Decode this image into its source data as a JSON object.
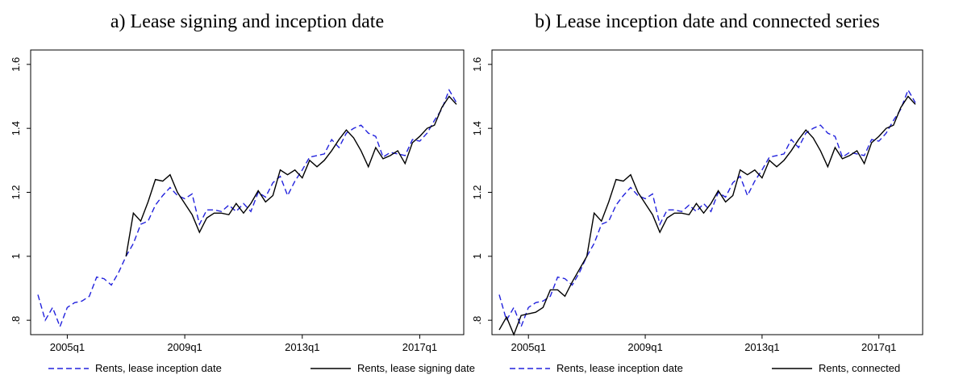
{
  "chart_data": [
    {
      "type": "line",
      "title": "a) Lease signing and inception date",
      "categories": [
        null,
        null,
        null,
        null,
        "2005q1",
        null,
        null,
        null,
        null,
        null,
        null,
        null,
        null,
        null,
        null,
        null,
        null,
        null,
        null,
        null,
        "2009q1",
        null,
        null,
        null,
        null,
        null,
        null,
        null,
        null,
        null,
        null,
        null,
        null,
        null,
        null,
        null,
        "2013q1",
        null,
        null,
        null,
        null,
        null,
        null,
        null,
        null,
        null,
        null,
        null,
        null,
        null,
        null,
        null,
        "2017q1",
        null,
        null,
        null,
        null,
        null
      ],
      "series": [
        {
          "name": "Rents, lease inception date",
          "color": "#2222dd",
          "line_style": "dashed",
          "values": [
            0.88,
            0.8,
            0.84,
            0.78,
            0.84,
            0.855,
            0.86,
            0.875,
            0.935,
            0.93,
            0.91,
            0.95,
            1.0,
            1.04,
            1.1,
            1.11,
            1.16,
            1.19,
            1.215,
            1.19,
            1.18,
            1.195,
            1.1,
            1.145,
            1.145,
            1.14,
            1.16,
            1.14,
            1.165,
            1.14,
            1.2,
            1.185,
            1.23,
            1.25,
            1.19,
            1.235,
            1.27,
            1.31,
            1.315,
            1.32,
            1.365,
            1.34,
            1.385,
            1.4,
            1.41,
            1.385,
            1.375,
            1.31,
            1.325,
            1.32,
            1.315,
            1.365,
            1.36,
            1.385,
            1.425,
            1.46,
            1.52,
            1.48
          ]
        },
        {
          "name": "Rents, lease signing date",
          "color": "#000000",
          "line_style": "solid",
          "values": [
            null,
            null,
            null,
            null,
            null,
            null,
            null,
            null,
            null,
            null,
            null,
            null,
            1.0,
            1.135,
            1.11,
            1.17,
            1.24,
            1.235,
            1.255,
            1.2,
            1.165,
            1.13,
            1.075,
            1.12,
            1.135,
            1.135,
            1.13,
            1.165,
            1.135,
            1.165,
            1.205,
            1.17,
            1.19,
            1.27,
            1.255,
            1.27,
            1.245,
            1.3,
            1.28,
            1.3,
            1.33,
            1.365,
            1.395,
            1.37,
            1.33,
            1.28,
            1.34,
            1.305,
            1.315,
            1.33,
            1.29,
            1.355,
            1.375,
            1.4,
            1.41,
            1.465,
            1.5,
            1.475
          ]
        }
      ],
      "ylim": [
        0.755,
        1.645
      ],
      "yticks": [
        {
          "value": 0.8,
          "label": ".8"
        },
        1,
        1.2,
        1.4,
        1.6
      ],
      "grid": false,
      "legend": "bottom"
    },
    {
      "type": "line",
      "title": "b) Lease inception date and connected series",
      "categories": [
        null,
        null,
        null,
        null,
        "2005q1",
        null,
        null,
        null,
        null,
        null,
        null,
        null,
        null,
        null,
        null,
        null,
        null,
        null,
        null,
        null,
        "2009q1",
        null,
        null,
        null,
        null,
        null,
        null,
        null,
        null,
        null,
        null,
        null,
        null,
        null,
        null,
        null,
        "2013q1",
        null,
        null,
        null,
        null,
        null,
        null,
        null,
        null,
        null,
        null,
        null,
        null,
        null,
        null,
        null,
        "2017q1",
        null,
        null,
        null,
        null,
        null
      ],
      "series": [
        {
          "name": "Rents, lease inception date",
          "color": "#2222dd",
          "line_style": "dashed",
          "values": [
            0.88,
            0.8,
            0.84,
            0.78,
            0.84,
            0.855,
            0.86,
            0.875,
            0.935,
            0.93,
            0.91,
            0.95,
            1.0,
            1.04,
            1.1,
            1.11,
            1.16,
            1.19,
            1.215,
            1.19,
            1.18,
            1.195,
            1.1,
            1.145,
            1.145,
            1.14,
            1.16,
            1.14,
            1.165,
            1.14,
            1.2,
            1.185,
            1.23,
            1.25,
            1.19,
            1.235,
            1.27,
            1.31,
            1.315,
            1.32,
            1.365,
            1.34,
            1.385,
            1.4,
            1.41,
            1.385,
            1.375,
            1.31,
            1.325,
            1.32,
            1.315,
            1.365,
            1.36,
            1.385,
            1.425,
            1.46,
            1.52,
            1.48
          ]
        },
        {
          "name": "Rents, connected",
          "color": "#000000",
          "line_style": "solid",
          "values": [
            0.77,
            0.81,
            0.755,
            0.815,
            0.82,
            0.825,
            0.84,
            0.895,
            0.895,
            0.875,
            0.92,
            0.96,
            1.0,
            1.135,
            1.11,
            1.17,
            1.24,
            1.235,
            1.255,
            1.2,
            1.165,
            1.13,
            1.075,
            1.12,
            1.135,
            1.135,
            1.13,
            1.165,
            1.135,
            1.165,
            1.205,
            1.17,
            1.19,
            1.27,
            1.255,
            1.27,
            1.245,
            1.3,
            1.28,
            1.3,
            1.33,
            1.365,
            1.395,
            1.37,
            1.33,
            1.28,
            1.34,
            1.305,
            1.315,
            1.33,
            1.29,
            1.355,
            1.375,
            1.4,
            1.41,
            1.465,
            1.5,
            1.475
          ]
        }
      ],
      "ylim": [
        0.755,
        1.645
      ],
      "yticks": [
        {
          "value": 0.8,
          "label": ".8"
        },
        1,
        1.2,
        1.4,
        1.6
      ],
      "grid": false,
      "legend": "bottom"
    }
  ]
}
